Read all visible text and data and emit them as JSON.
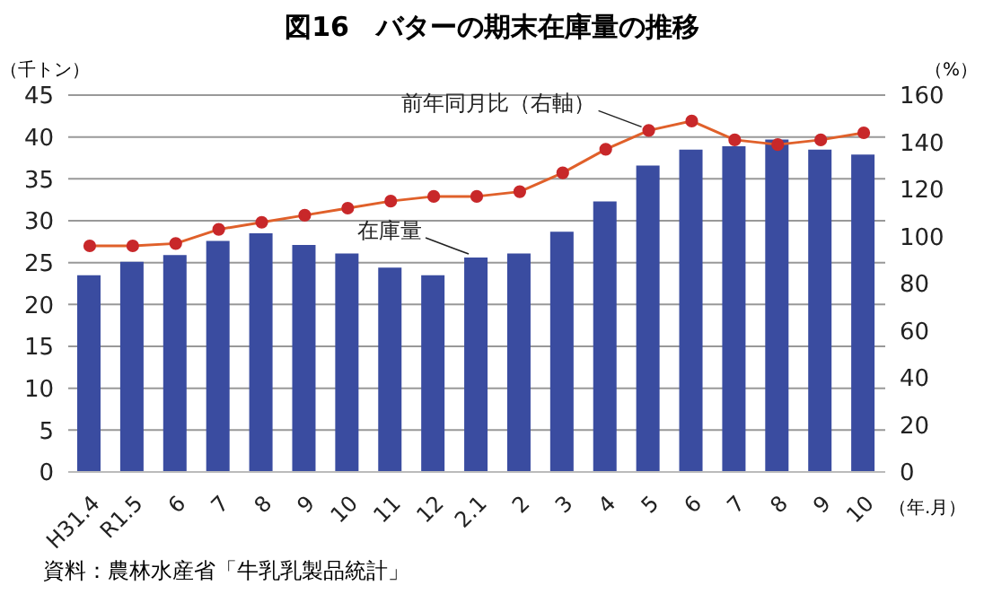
{
  "chart_data": {
    "type": "bar",
    "title": "図16　バターの期末在庫量の推移",
    "categories": [
      "H31.4",
      "R1.5",
      "6",
      "7",
      "8",
      "9",
      "10",
      "11",
      "12",
      "2.1",
      "2",
      "3",
      "4",
      "5",
      "6",
      "7",
      "8",
      "9",
      "10"
    ],
    "series": [
      {
        "name": "在庫量",
        "color": "#3a4ca0",
        "values": [
          23.5,
          25.1,
          25.9,
          27.6,
          28.5,
          27.1,
          26.1,
          24.4,
          23.5,
          25.6,
          26.1,
          28.7,
          32.3,
          36.6,
          38.5,
          38.9,
          39.7,
          38.5,
          37.9
        ]
      },
      {
        "name": "前年同月比（右軸）",
        "type": "line",
        "axis": "y2",
        "color": "#e0602a",
        "marker": "circle",
        "values": [
          96,
          96,
          97,
          103,
          106,
          109,
          112,
          115,
          117,
          117,
          119,
          127,
          137,
          145,
          149,
          141,
          139,
          141,
          144
        ]
      }
    ],
    "ylim": [
      0,
      45
    ],
    "yticks": [
      0,
      5,
      10,
      15,
      20,
      25,
      30,
      35,
      40,
      45
    ],
    "y2lim": [
      0,
      160
    ],
    "y2ticks": [
      0,
      20,
      40,
      60,
      80,
      100,
      120,
      140,
      160
    ],
    "ylabel": "（千トン）",
    "y2label": "（%）",
    "xlabel": "（年.月）",
    "grid": "y",
    "legend": false,
    "annotations": [
      "資料：農林水産省「牛乳乳製品統計」"
    ]
  }
}
